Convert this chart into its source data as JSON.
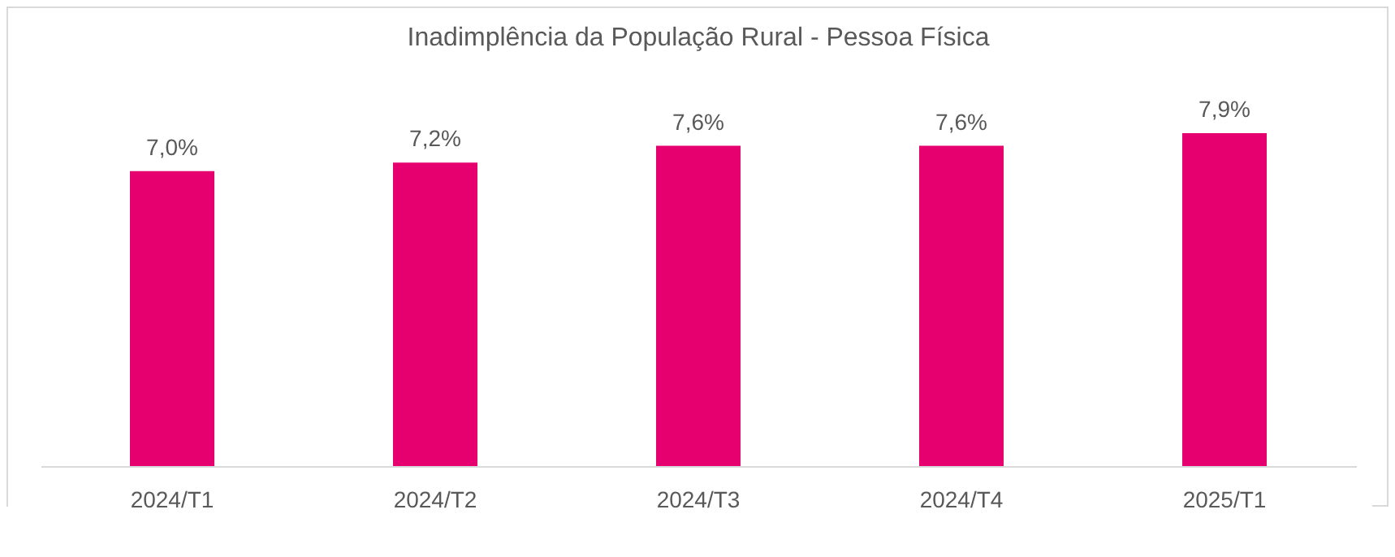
{
  "chart_data": {
    "type": "bar",
    "title": "Inadimplência da População Rural - Pessoa Física",
    "categories": [
      "2024/T1",
      "2024/T2",
      "2024/T3",
      "2024/T4",
      "2025/T1"
    ],
    "values": [
      7.0,
      7.2,
      7.6,
      7.6,
      7.9
    ],
    "value_labels": [
      "7,0%",
      "7,2%",
      "7,6%",
      "7,6%",
      "7,9%"
    ],
    "color": "#e6006f",
    "tick_labels": "x",
    "grid": false
  }
}
